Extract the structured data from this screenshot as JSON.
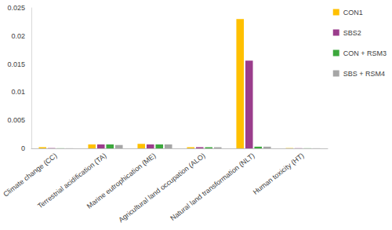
{
  "chart_data": {
    "type": "bar",
    "categories": [
      "Climate change (CC)",
      "Terrestrial acidification (TA)",
      "Marine eutrophication (ME)",
      "Agricultural land occupation (ALO)",
      "Natural land transformation (NLT)",
      "Human toxicity (HT)"
    ],
    "series": [
      {
        "name": "CON1",
        "color": "#FFC000",
        "values": [
          0.0002,
          0.0007,
          0.0008,
          0.0002,
          0.023,
          5e-05
        ]
      },
      {
        "name": "SBS2",
        "color": "#9B3D8C",
        "values": [
          5e-05,
          0.0007,
          0.0007,
          0.0002,
          0.0156,
          3e-05
        ]
      },
      {
        "name": "CON + RSM3",
        "color": "#3CA83C",
        "values": [
          2e-05,
          0.0007,
          0.0007,
          0.0002,
          0.0003,
          2e-05
        ]
      },
      {
        "name": "SBS + RSM4",
        "color": "#A6A6A6",
        "values": [
          2e-05,
          0.0006,
          0.0007,
          0.0002,
          0.0003,
          2e-05
        ]
      }
    ],
    "ylim": [
      0,
      0.025
    ],
    "yticks": [
      0,
      0.005,
      0.01,
      0.015,
      0.02,
      0.025
    ],
    "grid": false,
    "legend": "right"
  }
}
